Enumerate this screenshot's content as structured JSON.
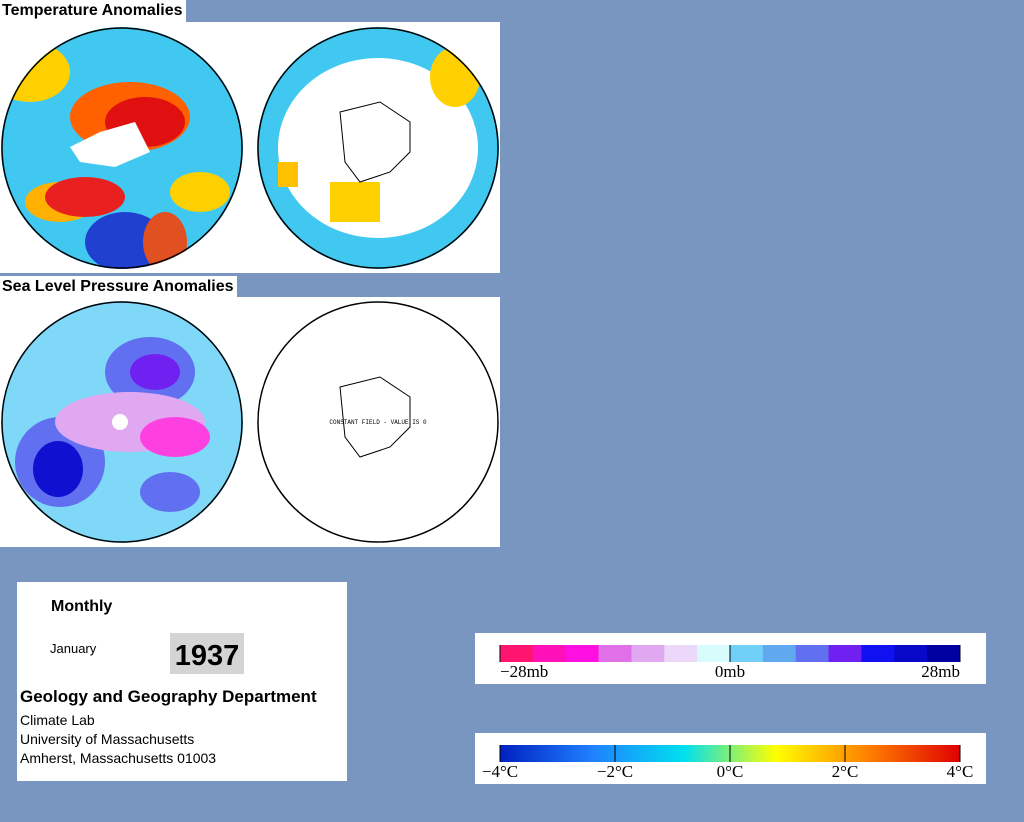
{
  "panels": [
    {
      "title": "Temperature Anomalies"
    },
    {
      "title": "Sea Level Pressure Anomalies",
      "note": "CONSTANT FIELD - VALUE IS 0"
    }
  ],
  "info": {
    "heading": "Monthly",
    "month": "January",
    "year": "1937",
    "department": "Geology and Geography Department",
    "lines": [
      "Climate Lab",
      "University of Massachusetts",
      "Amherst, Massachusetts 01003"
    ]
  },
  "colorbars": [
    {
      "labels": [
        "−28mb",
        "0mb",
        "28mb"
      ],
      "colors": [
        "#ff1470",
        "#ff10b8",
        "#ff10e0",
        "#e070e8",
        "#e0a8f0",
        "#ecd8f8",
        "#d8fbfb",
        "#70d0f8",
        "#60a8f0",
        "#6070f0",
        "#7020f0",
        "#1010f0",
        "#0808c8",
        "#0000a0"
      ]
    },
    {
      "labels": [
        "−4°C",
        "−2°C",
        "0°C",
        "2°C",
        "4°C"
      ],
      "colors": [
        "#0020c0",
        "#2080ff",
        "#00e0f0",
        "#ffff00",
        "#ff8000",
        "#e00000"
      ]
    }
  ]
}
